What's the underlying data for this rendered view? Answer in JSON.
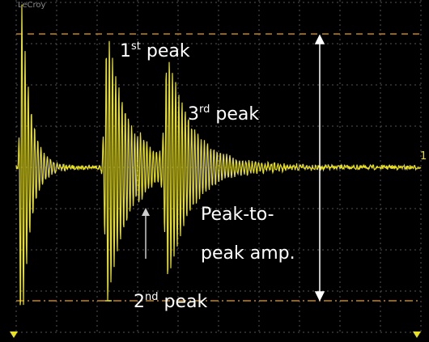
{
  "brand": "LeCroy",
  "channel_marker": "1",
  "annotations": {
    "first_peak": {
      "base": "1",
      "sup": "st",
      "rest": " peak"
    },
    "third_peak": {
      "base": "3",
      "sup": "rd",
      "rest": " peak"
    },
    "second_peak": {
      "base": "2",
      "sup": "nd",
      "rest": " peak"
    },
    "peak_to_peak": {
      "lines": [
        "Peak-to-",
        "peak amp."
      ]
    }
  }
}
